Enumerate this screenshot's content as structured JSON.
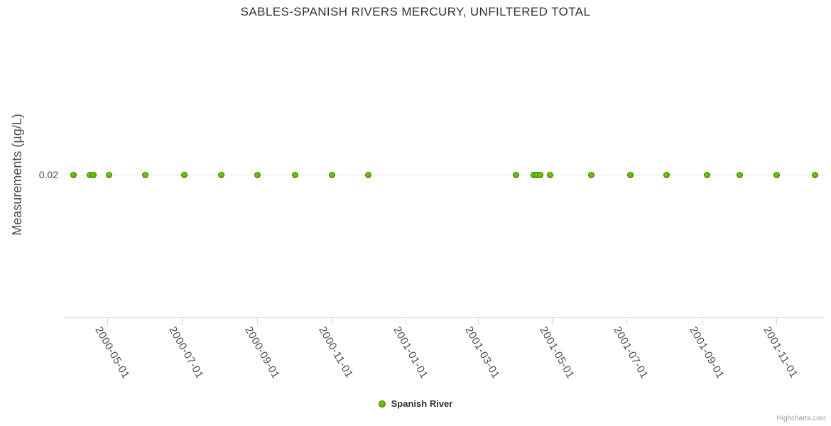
{
  "credits": {
    "label": "Highcharts.com"
  },
  "chart_data": {
    "type": "scatter",
    "title": "SABLES-SPANISH RIVERS MERCURY, UNFILTERED TOTAL",
    "xlabel": "",
    "ylabel": "Measurements (µg/L)",
    "ylim": [
      0,
      0.04
    ],
    "xlim": [
      "2000-03-26",
      "2001-12-10"
    ],
    "yticks": [
      0.02
    ],
    "ytick_labels": [
      "0.02"
    ],
    "xticks": [
      "2000-05-01",
      "2000-07-01",
      "2000-09-01",
      "2000-11-01",
      "2001-01-01",
      "2001-03-01",
      "2001-05-01",
      "2001-07-01",
      "2001-09-01",
      "2001-11-01"
    ],
    "grid": "y-only",
    "legend_position": "bottom-center",
    "series": [
      {
        "name": "Spanish River",
        "color": "#58ab02",
        "marker_stroke": "#417c00",
        "points": [
          {
            "x": "2000-04-03",
            "y": 0.02
          },
          {
            "x": "2000-04-16",
            "y": 0.02
          },
          {
            "x": "2000-04-19",
            "y": 0.02
          },
          {
            "x": "2000-05-02",
            "y": 0.02
          },
          {
            "x": "2000-06-01",
            "y": 0.02
          },
          {
            "x": "2000-07-03",
            "y": 0.02
          },
          {
            "x": "2000-08-02",
            "y": 0.02
          },
          {
            "x": "2000-09-01",
            "y": 0.02
          },
          {
            "x": "2000-10-02",
            "y": 0.02
          },
          {
            "x": "2000-11-01",
            "y": 0.02
          },
          {
            "x": "2000-12-01",
            "y": 0.02
          },
          {
            "x": "2001-04-01",
            "y": 0.02
          },
          {
            "x": "2001-04-16",
            "y": 0.02
          },
          {
            "x": "2001-04-18",
            "y": 0.02
          },
          {
            "x": "2001-04-21",
            "y": 0.02
          },
          {
            "x": "2001-04-29",
            "y": 0.02
          },
          {
            "x": "2001-06-02",
            "y": 0.02
          },
          {
            "x": "2001-07-04",
            "y": 0.02
          },
          {
            "x": "2001-08-03",
            "y": 0.02
          },
          {
            "x": "2001-09-05",
            "y": 0.02
          },
          {
            "x": "2001-10-02",
            "y": 0.02
          },
          {
            "x": "2001-11-01",
            "y": 0.02
          },
          {
            "x": "2001-12-03",
            "y": 0.02
          }
        ]
      }
    ]
  }
}
